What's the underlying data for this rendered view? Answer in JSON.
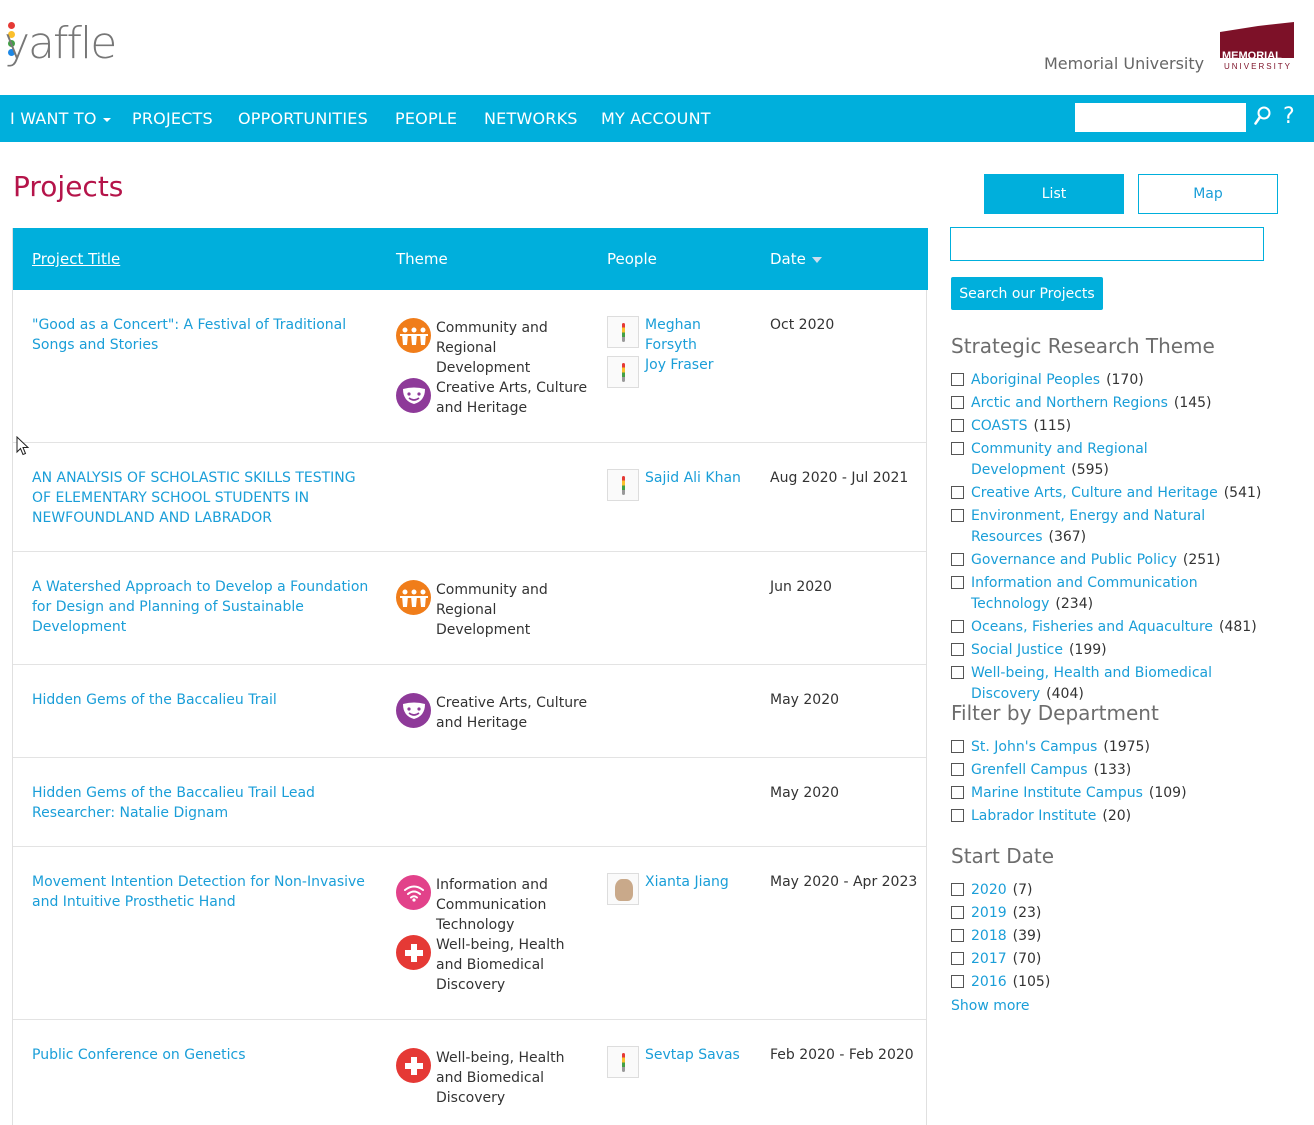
{
  "header": {
    "logo_text": "yaffle",
    "university_name": "Memorial University",
    "university_logo_text": [
      "MEMORIAL",
      "UNIVERSITY"
    ]
  },
  "nav": {
    "items": [
      "I WANT TO",
      "PROJECTS",
      "OPPORTUNITIES",
      "PEOPLE",
      "NETWORKS",
      "MY ACCOUNT"
    ],
    "search_value": "",
    "help_label": "?"
  },
  "page": {
    "title": "Projects"
  },
  "table": {
    "headers": {
      "title": "Project Title",
      "theme": "Theme",
      "people": "People",
      "date": "Date"
    },
    "rows": [
      {
        "title": "\"Good as a Concert\": A Festival of Traditional Songs and Stories",
        "themes": [
          {
            "label": "Community and Regional Development",
            "icon": "community-people-icon",
            "color": "#f07d1a"
          },
          {
            "label": "Creative Arts, Culture and Heritage",
            "icon": "theatre-masks-icon",
            "color": "#8e3a99"
          }
        ],
        "people": [
          {
            "name": "Meghan Forsyth",
            "avatar": "yaffle-default-avatar"
          },
          {
            "name": "Joy Fraser",
            "avatar": "yaffle-default-avatar"
          }
        ],
        "date": "Oct 2020"
      },
      {
        "title": "AN ANALYSIS OF SCHOLASTIC SKILLS TESTING OF ELEMENTARY SCHOOL STUDENTS IN NEWFOUNDLAND AND LABRADOR",
        "themes": [],
        "people": [
          {
            "name": "Sajid Ali Khan",
            "avatar": "yaffle-default-avatar"
          }
        ],
        "date": "Aug 2020 - Jul 2021"
      },
      {
        "title": "A Watershed Approach to Develop a Foundation for Design and Planning of Sustainable Development",
        "themes": [
          {
            "label": "Community and Regional Development",
            "icon": "community-people-icon",
            "color": "#f07d1a"
          }
        ],
        "people": [],
        "date": "Jun 2020"
      },
      {
        "title": "Hidden Gems of the Baccalieu Trail",
        "themes": [
          {
            "label": "Creative Arts, Culture and Heritage",
            "icon": "theatre-masks-icon",
            "color": "#8e3a99"
          }
        ],
        "people": [],
        "date": "May 2020"
      },
      {
        "title": "Hidden Gems of the Baccalieu Trail Lead Researcher: Natalie Dignam",
        "themes": [],
        "people": [],
        "date": "May 2020"
      },
      {
        "title": "Movement Intention Detection for Non-Invasive and Intuitive Prosthetic Hand",
        "themes": [
          {
            "label": "Information and Communication Technology",
            "icon": "wifi-icon",
            "color": "#e2428a"
          },
          {
            "label": "Well-being, Health and Biomedical Discovery",
            "icon": "medical-cross-icon",
            "color": "#e53935"
          }
        ],
        "people": [
          {
            "name": "Xianta Jiang",
            "avatar": "photo-avatar"
          }
        ],
        "date": "May 2020 - Apr 2023"
      },
      {
        "title": "Public Conference on Genetics",
        "themes": [
          {
            "label": "Well-being, Health and Biomedical Discovery",
            "icon": "medical-cross-icon",
            "color": "#e53935"
          }
        ],
        "people": [
          {
            "name": "Sevtap Savas",
            "avatar": "yaffle-default-avatar"
          }
        ],
        "date": "Feb 2020 - Feb 2020"
      }
    ]
  },
  "sidebar": {
    "view_toggle": {
      "list": "List",
      "map": "Map",
      "active": "List"
    },
    "search_value": "",
    "search_button": "Search our Projects",
    "facets": [
      {
        "title": "Strategic Research Theme",
        "items": [
          {
            "label": "Aboriginal Peoples",
            "count": "(170)"
          },
          {
            "label": "Arctic and Northern Regions",
            "count": "(145)"
          },
          {
            "label": "COASTS",
            "count": "(115)"
          },
          {
            "label": "Community and Regional Development",
            "count": "(595)"
          },
          {
            "label": "Creative Arts, Culture and Heritage",
            "count": "(541)"
          },
          {
            "label": "Environment, Energy and Natural Resources",
            "count": "(367)"
          },
          {
            "label": "Governance and Public Policy",
            "count": "(251)"
          },
          {
            "label": "Information and Communication Technology",
            "count": "(234)"
          },
          {
            "label": "Oceans, Fisheries and Aquaculture",
            "count": "(481)"
          },
          {
            "label": "Social Justice",
            "count": "(199)"
          },
          {
            "label": "Well-being, Health and Biomedical Discovery",
            "count": "(404)"
          }
        ]
      },
      {
        "title": "Filter by Department",
        "items": [
          {
            "label": "St. John's Campus",
            "count": "(1975)"
          },
          {
            "label": "Grenfell Campus",
            "count": "(133)"
          },
          {
            "label": "Marine Institute Campus",
            "count": "(109)"
          },
          {
            "label": "Labrador Institute",
            "count": "(20)"
          }
        ]
      },
      {
        "title": "Start Date",
        "items": [
          {
            "label": "2020",
            "count": "(7)"
          },
          {
            "label": "2019",
            "count": "(23)"
          },
          {
            "label": "2018",
            "count": "(39)"
          },
          {
            "label": "2017",
            "count": "(70)"
          },
          {
            "label": "2016",
            "count": "(105)"
          }
        ]
      }
    ],
    "show_more": "Show more"
  },
  "colors": {
    "brand_blue": "#00afdc",
    "link": "#1a9ed8",
    "title_red": "#b5144a",
    "university_maroon": "#7d1128"
  }
}
